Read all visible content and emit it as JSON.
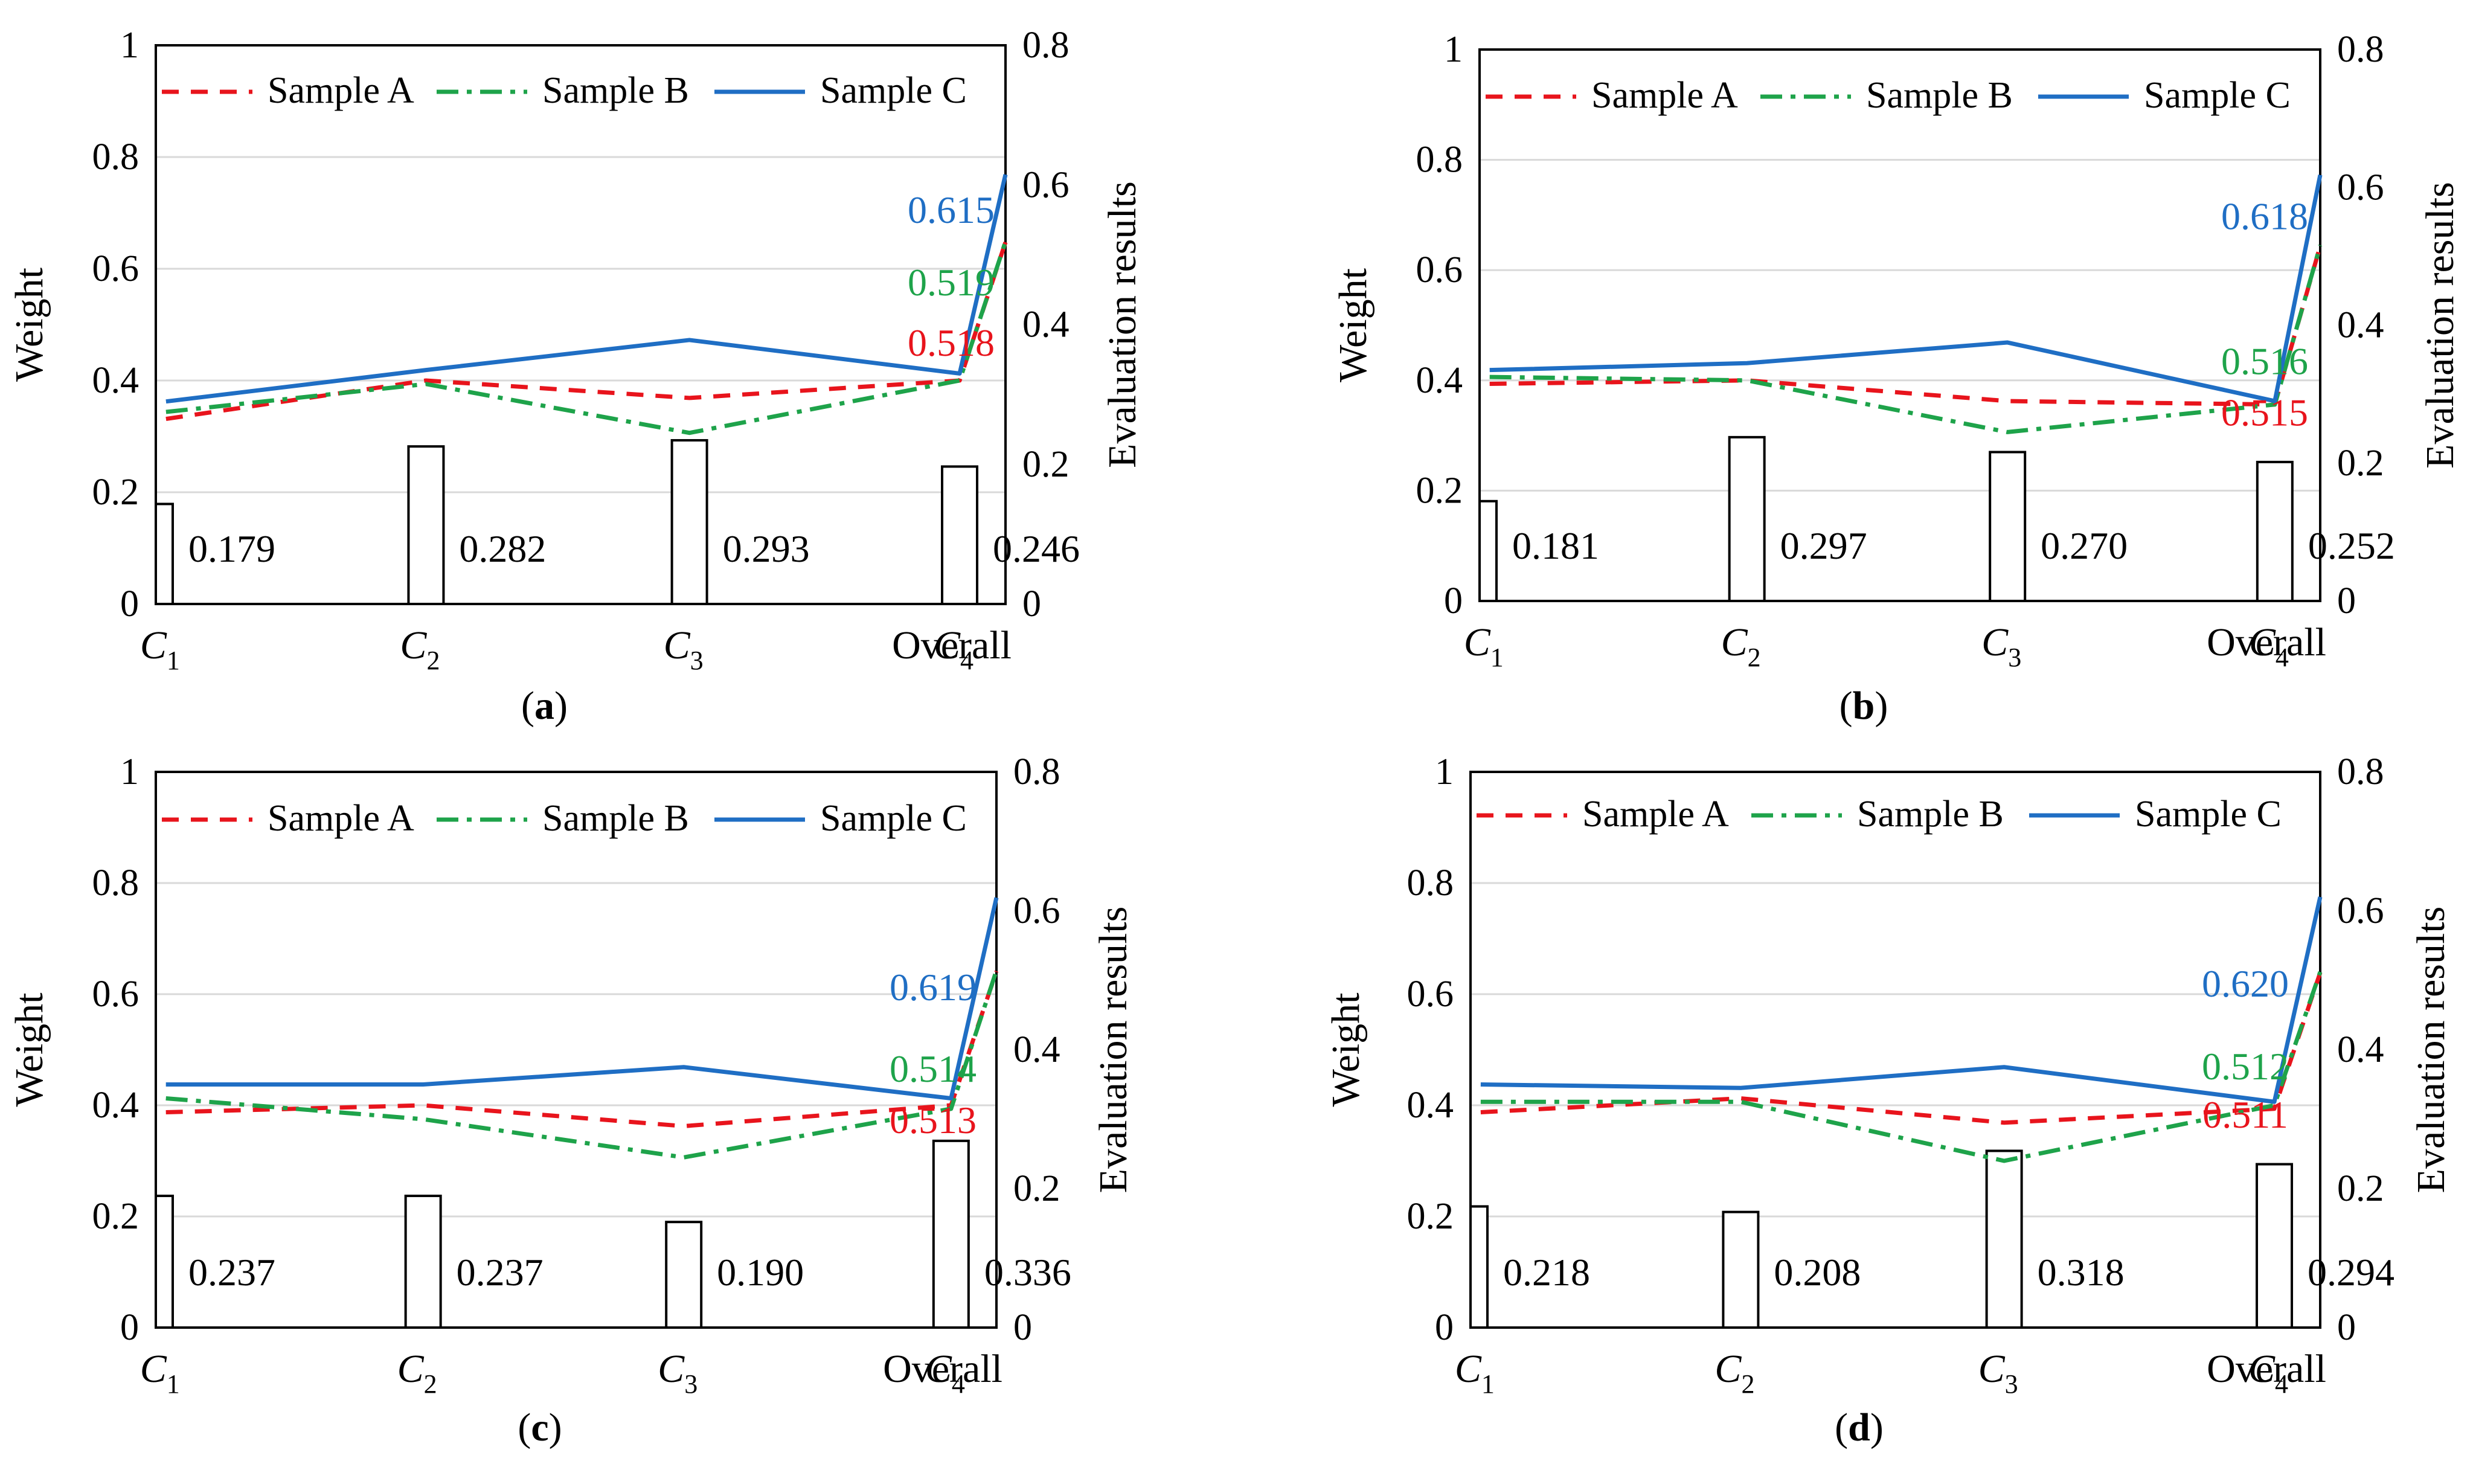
{
  "legend": [
    {
      "key": "A",
      "name": "Sample A",
      "color": "#e8141c",
      "dash": "28,20"
    },
    {
      "key": "B",
      "name": "Sample B",
      "color": "#1ea34a",
      "dash": "36,14,8,14"
    },
    {
      "key": "C",
      "name": "Sample C",
      "color": "#1f6ec4",
      "dash": ""
    }
  ],
  "chart_data": [
    {
      "type": "bar+line",
      "panel": "a",
      "panel_label": [
        "(",
        "a",
        ")"
      ],
      "categories": [
        {
          "base": "C",
          "sub": "1"
        },
        {
          "base": "C",
          "sub": "2"
        },
        {
          "base": "C",
          "sub": "3"
        },
        {
          "base": "C",
          "sub": "4"
        },
        {
          "base": "Overall",
          "sub": ""
        }
      ],
      "ylabel": "Weight",
      "y2label": "Evaluation results",
      "ylim": [
        0,
        1
      ],
      "y2lim": [
        0,
        0.8
      ],
      "y_ticks": [
        "0",
        "0.2",
        "0.4",
        "0.6",
        "0.8",
        "1"
      ],
      "y2_ticks": [
        "0",
        "0.2",
        "0.4",
        "0.6",
        "0.8"
      ],
      "weights": [
        0.179,
        0.282,
        0.293,
        0.246
      ],
      "weight_labels": [
        "0.179",
        "0.282",
        "0.293",
        "0.246"
      ],
      "series": [
        {
          "name": "Sample A",
          "values": [
            0.265,
            0.32,
            0.295,
            0.32,
            0.518
          ]
        },
        {
          "name": "Sample B",
          "values": [
            0.275,
            0.315,
            0.245,
            0.32,
            0.519
          ]
        },
        {
          "name": "Sample C",
          "values": [
            0.29,
            0.335,
            0.378,
            0.33,
            0.615
          ]
        }
      ],
      "end_labels": {
        "A": "0.518",
        "B": "0.519",
        "C": "0.615"
      }
    },
    {
      "type": "bar+line",
      "panel": "b",
      "panel_label": [
        "(",
        "b",
        ")"
      ],
      "categories": [
        {
          "base": "C",
          "sub": "1"
        },
        {
          "base": "C",
          "sub": "2"
        },
        {
          "base": "C",
          "sub": "3"
        },
        {
          "base": "C",
          "sub": "4"
        },
        {
          "base": "Overall",
          "sub": ""
        }
      ],
      "ylabel": "Weight",
      "y2label": "Evaluation results",
      "ylim": [
        0,
        1
      ],
      "y2lim": [
        0,
        0.8
      ],
      "y_ticks": [
        "0",
        "0.2",
        "0.4",
        "0.6",
        "0.8",
        "1"
      ],
      "y2_ticks": [
        "0",
        "0.2",
        "0.4",
        "0.6",
        "0.8"
      ],
      "weights": [
        0.181,
        0.297,
        0.27,
        0.252
      ],
      "weight_labels": [
        "0.181",
        "0.297",
        "0.270",
        "0.252"
      ],
      "series": [
        {
          "name": "Sample A",
          "values": [
            0.315,
            0.32,
            0.29,
            0.285,
            0.515
          ]
        },
        {
          "name": "Sample B",
          "values": [
            0.325,
            0.32,
            0.245,
            0.285,
            0.516
          ]
        },
        {
          "name": "Sample C",
          "values": [
            0.335,
            0.345,
            0.375,
            0.29,
            0.618
          ]
        }
      ],
      "end_labels": {
        "A": "0.515",
        "B": "0.516",
        "C": "0.618"
      }
    },
    {
      "type": "bar+line",
      "panel": "c",
      "panel_label": [
        "(",
        "c",
        ")"
      ],
      "categories": [
        {
          "base": "C",
          "sub": "1"
        },
        {
          "base": "C",
          "sub": "2"
        },
        {
          "base": "C",
          "sub": "3"
        },
        {
          "base": "C",
          "sub": "4"
        },
        {
          "base": "Overall",
          "sub": ""
        }
      ],
      "ylabel": "Weight",
      "y2label": "Evaluation results",
      "ylim": [
        0,
        1
      ],
      "y2lim": [
        0,
        0.8
      ],
      "y_ticks": [
        "0",
        "0.2",
        "0.4",
        "0.6",
        "0.8",
        "1"
      ],
      "y2_ticks": [
        "0",
        "0.2",
        "0.4",
        "0.6",
        "0.8"
      ],
      "weights": [
        0.237,
        0.237,
        0.19,
        0.336
      ],
      "weight_labels": [
        "0.237",
        "0.237",
        "0.190",
        "0.336"
      ],
      "series": [
        {
          "name": "Sample A",
          "values": [
            0.31,
            0.32,
            0.29,
            0.32,
            0.513
          ]
        },
        {
          "name": "Sample B",
          "values": [
            0.33,
            0.3,
            0.245,
            0.315,
            0.514
          ]
        },
        {
          "name": "Sample C",
          "values": [
            0.35,
            0.35,
            0.375,
            0.33,
            0.619
          ]
        }
      ],
      "end_labels": {
        "A": "0.513",
        "B": "0.514",
        "C": "0.619"
      }
    },
    {
      "type": "bar+line",
      "panel": "d",
      "panel_label": [
        "(",
        "d",
        ")"
      ],
      "categories": [
        {
          "base": "C",
          "sub": "1"
        },
        {
          "base": "C",
          "sub": "2"
        },
        {
          "base": "C",
          "sub": "3"
        },
        {
          "base": "C",
          "sub": "4"
        },
        {
          "base": "Overall",
          "sub": ""
        }
      ],
      "ylabel": "Weight",
      "y2label": "Evaluation results",
      "ylim": [
        0,
        1
      ],
      "y2lim": [
        0,
        0.8
      ],
      "y_ticks": [
        "0",
        "0.2",
        "0.4",
        "0.6",
        "0.8",
        "1"
      ],
      "y2_ticks": [
        "0",
        "0.2",
        "0.4",
        "0.6",
        "0.8"
      ],
      "weights": [
        0.218,
        0.208,
        0.318,
        0.294
      ],
      "weight_labels": [
        "0.218",
        "0.208",
        "0.318",
        "0.294"
      ],
      "series": [
        {
          "name": "Sample A",
          "values": [
            0.31,
            0.33,
            0.295,
            0.315,
            0.511
          ]
        },
        {
          "name": "Sample B",
          "values": [
            0.325,
            0.325,
            0.24,
            0.32,
            0.512
          ]
        },
        {
          "name": "Sample C",
          "values": [
            0.35,
            0.345,
            0.375,
            0.325,
            0.62
          ]
        }
      ],
      "end_labels": {
        "A": "0.511",
        "B": "0.512",
        "C": "0.620"
      }
    }
  ]
}
